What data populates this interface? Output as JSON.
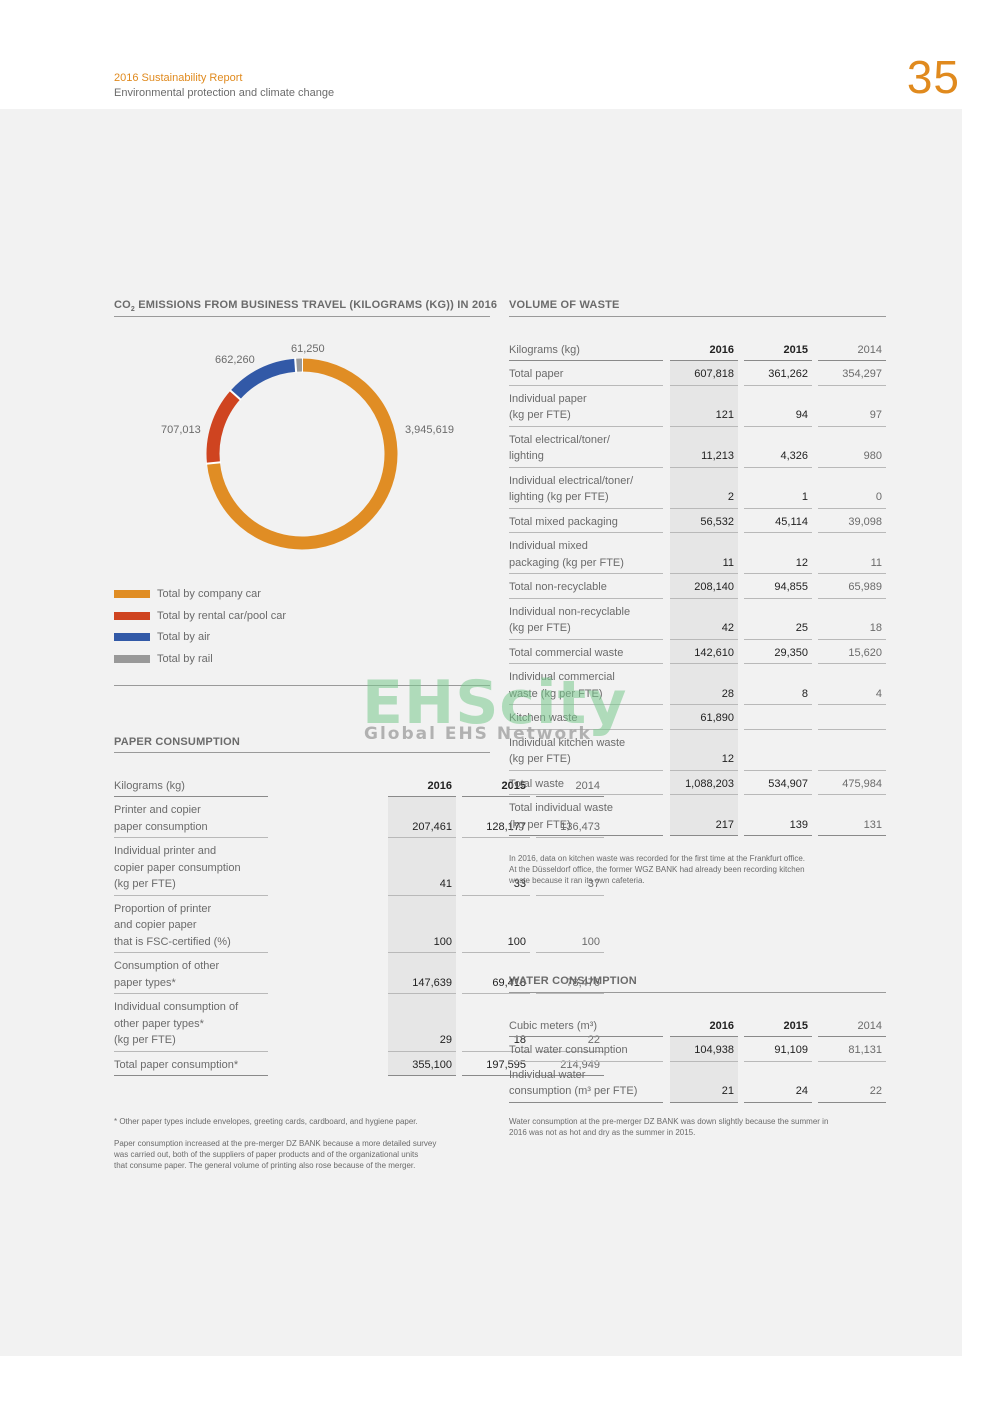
{
  "header": {
    "report_title": "2016 Sustainability Report",
    "section": "Environmental protection and climate change",
    "page_number": "35"
  },
  "co2": {
    "title_pre": "CO",
    "title_sub": "2",
    "title_post": " EMISSIONS FROM BUSINESS TRAVEL (KILOGRAMS (KG)) IN 2016",
    "chart_data": {
      "type": "pie",
      "categories": [
        "Total by company car",
        "Total by rental car/pool car",
        "Total by air",
        "Total by rail"
      ],
      "values": [
        3945619,
        707013,
        662260,
        61250
      ],
      "value_labels": [
        "3,945,619",
        "707,013",
        "662,260",
        "61,250"
      ],
      "colors": [
        "#e08d24",
        "#cf4420",
        "#3259a7",
        "#999999"
      ],
      "legend_position": "bottom-left"
    }
  },
  "paper": {
    "title": "PAPER CONSUMPTION",
    "headers": [
      "Kilograms (kg)",
      "2016",
      "2015",
      "2014"
    ],
    "rows": [
      {
        "label": [
          "Printer and copier",
          "paper consumption"
        ],
        "v": [
          "207,461",
          "128,177",
          "136,473"
        ]
      },
      {
        "label": [
          "Individual printer and",
          "copier paper consumption",
          "(kg per FTE)"
        ],
        "v": [
          "41",
          "33",
          "37"
        ]
      },
      {
        "label": [
          "Proportion of printer",
          "and copier paper",
          "that is FSC-certified (%)"
        ],
        "v": [
          "100",
          "100",
          "100"
        ]
      },
      {
        "label": [
          "Consumption of other",
          "paper types*"
        ],
        "v": [
          "147,639",
          "69,418",
          "78,476"
        ]
      },
      {
        "label": [
          "Individual consumption of",
          "other paper types*",
          "(kg per FTE)"
        ],
        "v": [
          "29",
          "18",
          "22"
        ]
      },
      {
        "label": [
          "Total paper consumption*"
        ],
        "v": [
          "355,100",
          "197,595",
          "214,949"
        ]
      }
    ],
    "footnote": "* Other paper types include envelopes, greeting cards, cardboard, and hygiene paper.",
    "note": [
      "Paper consumption increased at the pre-merger DZ BANK because a more detailed survey",
      "was carried out, both of the suppliers of paper products and of the organizational units",
      "that consume paper. The general volume of printing also rose because of the merger."
    ]
  },
  "waste": {
    "title": "VOLUME OF WASTE",
    "headers": [
      "Kilograms (kg)",
      "2016",
      "2015",
      "2014"
    ],
    "rows": [
      {
        "label": [
          "Total paper"
        ],
        "v": [
          "607,818",
          "361,262",
          "354,297"
        ]
      },
      {
        "label": [
          "Individual paper",
          "(kg per FTE)"
        ],
        "v": [
          "121",
          "94",
          "97"
        ]
      },
      {
        "label": [
          "Total electrical/toner/",
          "lighting"
        ],
        "v": [
          "11,213",
          "4,326",
          "980"
        ]
      },
      {
        "label": [
          "Individual electrical/toner/",
          "lighting (kg per FTE)"
        ],
        "v": [
          "2",
          "1",
          "0"
        ]
      },
      {
        "label": [
          "Total mixed packaging"
        ],
        "v": [
          "56,532",
          "45,114",
          "39,098"
        ]
      },
      {
        "label": [
          "Individual mixed",
          "packaging (kg per FTE)"
        ],
        "v": [
          "11",
          "12",
          "11"
        ]
      },
      {
        "label": [
          "Total non-recyclable"
        ],
        "v": [
          "208,140",
          "94,855",
          "65,989"
        ]
      },
      {
        "label": [
          "Individual non-recyclable",
          "(kg per FTE)"
        ],
        "v": [
          "42",
          "25",
          "18"
        ]
      },
      {
        "label": [
          "Total commercial waste"
        ],
        "v": [
          "142,610",
          "29,350",
          "15,620"
        ]
      },
      {
        "label": [
          "Individual commercial",
          "waste (kg per FTE)"
        ],
        "v": [
          "28",
          "8",
          "4"
        ]
      },
      {
        "label": [
          "Kitchen waste"
        ],
        "v": [
          "61,890",
          "",
          ""
        ]
      },
      {
        "label": [
          "Individual kitchen waste",
          "(kg per FTE)"
        ],
        "v": [
          "12",
          "",
          ""
        ]
      },
      {
        "label": [
          "Total waste"
        ],
        "v": [
          "1,088,203",
          "534,907",
          "475,984"
        ]
      },
      {
        "label": [
          "Total individual waste",
          "(kg per FTE)"
        ],
        "v": [
          "217",
          "139",
          "131"
        ]
      }
    ],
    "note": [
      "In 2016, data on kitchen waste was recorded for the first time at the Frankfurt office.",
      "At the Düsseldorf office, the former WGZ BANK had already been recording kitchen",
      "waste because it ran its own cafeteria."
    ]
  },
  "water": {
    "title": "WATER CONSUMPTION",
    "headers": [
      "Cubic meters (m³)",
      "2016",
      "2015",
      "2014"
    ],
    "rows": [
      {
        "label": [
          "Total water consumption"
        ],
        "v": [
          "104,938",
          "91,109",
          "81,131"
        ]
      },
      {
        "label": [
          "Individual water",
          "consumption (m³ per FTE)"
        ],
        "v": [
          "21",
          "24",
          "22"
        ]
      }
    ],
    "note": [
      "Water consumption at the pre-merger DZ BANK was down slightly because the summer in",
      "2016 was not as hot and dry as the summer in 2015."
    ]
  },
  "watermark": {
    "main": "EHScity",
    "sub": "Global EHS Network"
  }
}
